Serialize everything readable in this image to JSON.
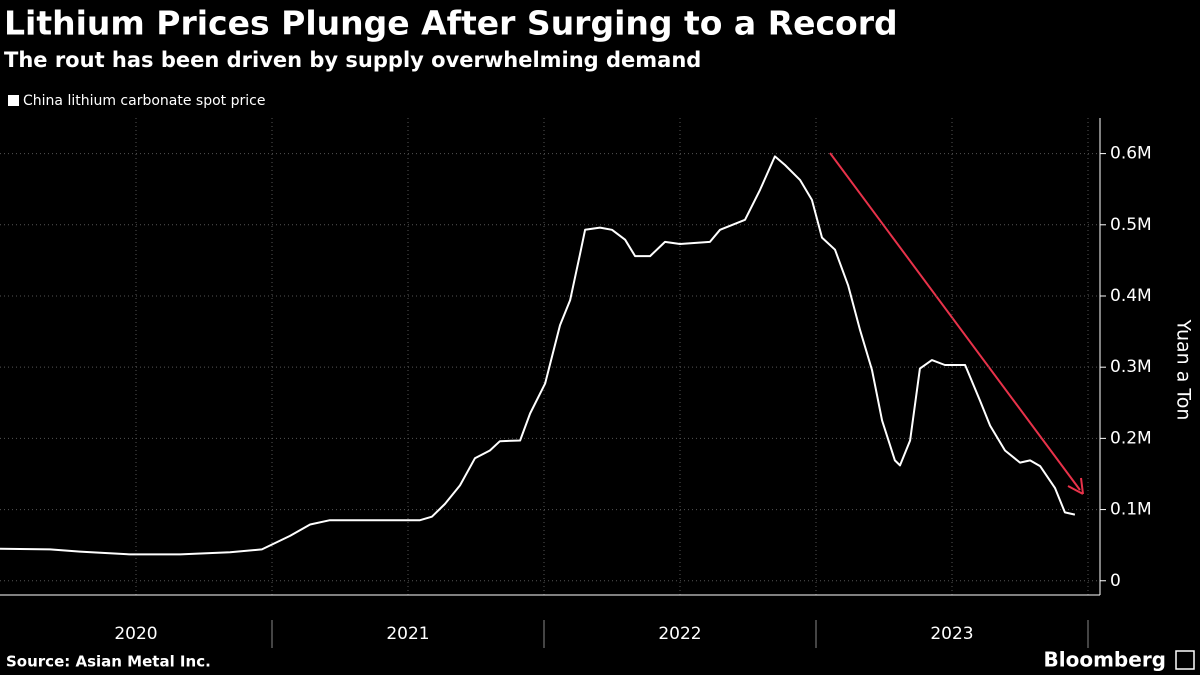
{
  "chart_data": {
    "type": "line",
    "title": "Lithium Prices Plunge After Surging to a Record",
    "subtitle": "The rout has been driven by supply overwhelming demand",
    "y_label": "Yuan a Ton",
    "source": "Source: Asian Metal Inc.",
    "brand": "Bloomberg",
    "x": [
      2020.0,
      2020.184,
      2020.294,
      2020.478,
      2020.662,
      2020.846,
      2020.963,
      2021.066,
      2021.14,
      2021.213,
      2021.36,
      2021.544,
      2021.588,
      2021.636,
      2021.691,
      2021.746,
      2021.801,
      2021.838,
      2021.912,
      2021.949,
      2022.004,
      2022.059,
      2022.096,
      2022.132,
      2022.151,
      2022.206,
      2022.25,
      2022.298,
      2022.335,
      2022.39,
      2022.445,
      2022.5,
      2022.61,
      2022.647,
      2022.739,
      2022.794,
      2022.849,
      2022.886,
      2022.941,
      2022.985,
      2023.022,
      2023.07,
      2023.118,
      2023.162,
      2023.206,
      2023.243,
      2023.29,
      2023.309,
      2023.346,
      2023.382,
      2023.426,
      2023.474,
      2023.548,
      2023.603,
      2023.64,
      2023.695,
      2023.75,
      2023.787,
      2023.824,
      2023.879,
      2023.915,
      2023.952
    ],
    "series": [
      {
        "name": "China lithium carbonate spot price",
        "color": "#ffffff",
        "values": [
          45000,
          44000,
          41000,
          37000,
          37000,
          40000,
          44000,
          63000,
          79000,
          85000,
          85000,
          85000,
          90000,
          108000,
          134000,
          172000,
          183000,
          196000,
          197000,
          235000,
          277000,
          359000,
          394000,
          458000,
          493000,
          496000,
          493000,
          479000,
          456000,
          456000,
          476000,
          473000,
          476000,
          493000,
          507000,
          549000,
          596000,
          584000,
          563000,
          535000,
          482000,
          465000,
          415000,
          352000,
          296000,
          225000,
          169000,
          162000,
          197000,
          298000,
          310000,
          303000,
          303000,
          253000,
          218000,
          183000,
          166000,
          169000,
          161000,
          130000,
          96000,
          93000
        ]
      }
    ],
    "xlim": [
      2020,
      2024
    ],
    "xticks": [
      {
        "value": 2020.5,
        "label": "2020"
      },
      {
        "value": 2021.5,
        "label": "2021"
      },
      {
        "value": 2022.5,
        "label": "2022"
      },
      {
        "value": 2023.5,
        "label": "2023"
      }
    ],
    "ylim": [
      -20000,
      650000
    ],
    "yticks": [
      0,
      {
        "value": 100000,
        "label": "0.1M"
      },
      {
        "value": 200000,
        "label": "0.2M"
      },
      {
        "value": 300000,
        "label": "0.3M"
      },
      {
        "value": 400000,
        "label": "0.4M"
      },
      {
        "value": 500000,
        "label": "0.5M"
      },
      {
        "value": 600000,
        "label": "0.6M"
      }
    ],
    "grid": true
  }
}
